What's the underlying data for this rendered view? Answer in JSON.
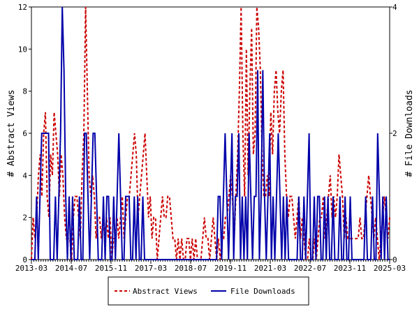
{
  "chart_data": {
    "type": "line",
    "title": "",
    "xlabel": "",
    "ylabel": "# Abstract Views",
    "y2label": "# File Downloads",
    "x_tick_labels": [
      "2013-03",
      "2014-07",
      "2015-11",
      "2017-03",
      "2018-07",
      "2019-11",
      "2021-03",
      "2022-07",
      "2023-11",
      "2025-03"
    ],
    "y_ticks": [
      "0",
      "2",
      "4",
      "6",
      "8",
      "10",
      "12"
    ],
    "y2_ticks": [
      "0",
      "2",
      "4"
    ],
    "ylim": [
      0,
      12
    ],
    "y2lim": [
      0,
      4
    ],
    "grid": false,
    "legend_position": "bottom-center",
    "series": [
      {
        "name": "Abstract Views",
        "axis": "left",
        "color": "#cc0000",
        "style": "dashed",
        "values": [
          0,
          2,
          1,
          2,
          4,
          5,
          3,
          6,
          7,
          3,
          2,
          5,
          4,
          7,
          6,
          5,
          3,
          5,
          4,
          2,
          1,
          1,
          1,
          0,
          2,
          3,
          3,
          2,
          1,
          4,
          6,
          12,
          8,
          4,
          3,
          4,
          3,
          1,
          2,
          2,
          1,
          2,
          1,
          2,
          1,
          2,
          0,
          1,
          1,
          2,
          1,
          2,
          3,
          1,
          2,
          3,
          3,
          4,
          5,
          6,
          5,
          2,
          3,
          4,
          5,
          6,
          4,
          2,
          3,
          1,
          2,
          2,
          0,
          1,
          2,
          3,
          2,
          2,
          3,
          3,
          2,
          1,
          1,
          0,
          1,
          0,
          1,
          0,
          0,
          1,
          1,
          0,
          1,
          0,
          1,
          0,
          0,
          0,
          1,
          2,
          1,
          1,
          0,
          1,
          2,
          1,
          0,
          1,
          0,
          1,
          1,
          2,
          2,
          3,
          4,
          3,
          1,
          3,
          5,
          8,
          12,
          6,
          3,
          10,
          4,
          8,
          11,
          5,
          6,
          12,
          11,
          9,
          5,
          3,
          3,
          4,
          3,
          7,
          5,
          8,
          9,
          7,
          6,
          8,
          9,
          5,
          3,
          2,
          3,
          3,
          2,
          1,
          2,
          3,
          1,
          2,
          1,
          0,
          0,
          1,
          0,
          0,
          1,
          0,
          1,
          2,
          2,
          3,
          1,
          2,
          3,
          4,
          2,
          3,
          2,
          3,
          5,
          4,
          3,
          1,
          2,
          1,
          1,
          1,
          1,
          1,
          1,
          1,
          2,
          1,
          1,
          2,
          3,
          4,
          3,
          2,
          1,
          2,
          1,
          0,
          1,
          2,
          3,
          2,
          1,
          2
        ]
      },
      {
        "name": "File Downloads",
        "axis": "right",
        "color": "#0000aa",
        "style": "solid",
        "values": [
          0,
          0,
          0,
          1,
          0,
          1,
          2,
          2,
          2,
          2,
          2,
          0,
          0,
          0,
          1,
          0,
          1,
          2,
          4,
          3,
          1,
          0,
          1,
          0,
          1,
          0,
          0,
          0,
          1,
          0,
          0,
          2,
          2,
          1,
          0,
          1,
          2,
          2,
          1,
          0,
          0,
          0,
          1,
          0,
          1,
          1,
          0,
          0,
          1,
          0,
          1,
          2,
          1,
          0,
          0,
          1,
          1,
          1,
          0,
          0,
          1,
          0,
          1,
          0,
          0,
          1,
          0,
          0,
          0,
          0,
          0,
          0,
          0,
          0,
          0,
          0,
          0,
          0,
          0,
          0,
          0,
          0,
          0,
          0,
          0,
          0,
          0,
          0,
          0,
          0,
          0,
          0,
          0,
          0,
          0,
          0,
          0,
          0,
          0,
          0,
          0,
          0,
          0,
          0,
          0,
          0,
          0,
          0,
          0,
          1,
          1,
          0,
          1,
          2,
          1,
          0,
          1,
          2,
          0,
          1,
          1,
          2,
          0,
          1,
          0,
          1,
          0,
          2,
          1,
          0,
          1,
          1,
          3,
          0,
          1,
          3,
          1,
          0,
          1,
          2,
          0,
          1,
          0,
          1,
          2,
          1,
          0,
          1,
          0,
          1,
          0,
          0,
          0,
          0,
          0,
          0,
          1,
          0,
          0,
          1,
          0,
          1,
          2,
          0,
          0,
          1,
          0,
          1,
          1,
          0,
          0,
          1,
          0,
          1,
          0,
          0,
          1,
          0,
          0,
          0,
          1,
          0,
          0,
          1,
          0,
          0,
          1,
          0,
          0,
          0,
          0,
          0,
          0,
          0,
          0,
          1,
          0,
          0,
          0,
          1,
          0,
          0,
          2,
          1,
          0,
          1,
          0,
          1,
          0,
          0
        ]
      }
    ]
  }
}
